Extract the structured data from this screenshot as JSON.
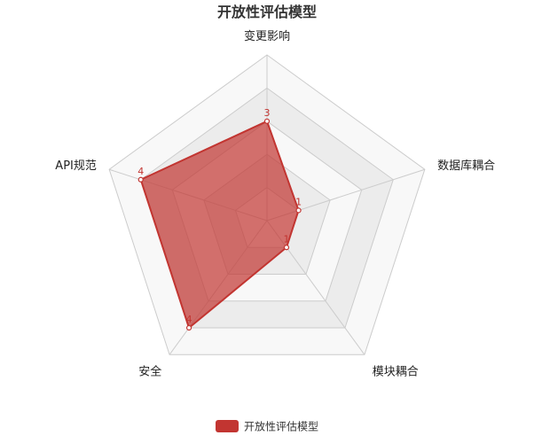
{
  "chart_data": {
    "type": "radar",
    "title": "开放性评估模型",
    "max": 5,
    "ring_count": 5,
    "grid": true,
    "legend_position": "bottom",
    "indicators": [
      "变更影响",
      "数据库耦合",
      "模块耦合",
      "安全",
      "API规范"
    ],
    "series": [
      {
        "name": "开放性评估模型",
        "values": [
          3,
          1,
          1,
          4,
          4
        ],
        "color": "#c23531"
      }
    ]
  },
  "colors": {
    "series": "#c23531",
    "band_dark": "#ececec",
    "band_light": "#f8f8f8",
    "grid_line": "#cccccc"
  }
}
